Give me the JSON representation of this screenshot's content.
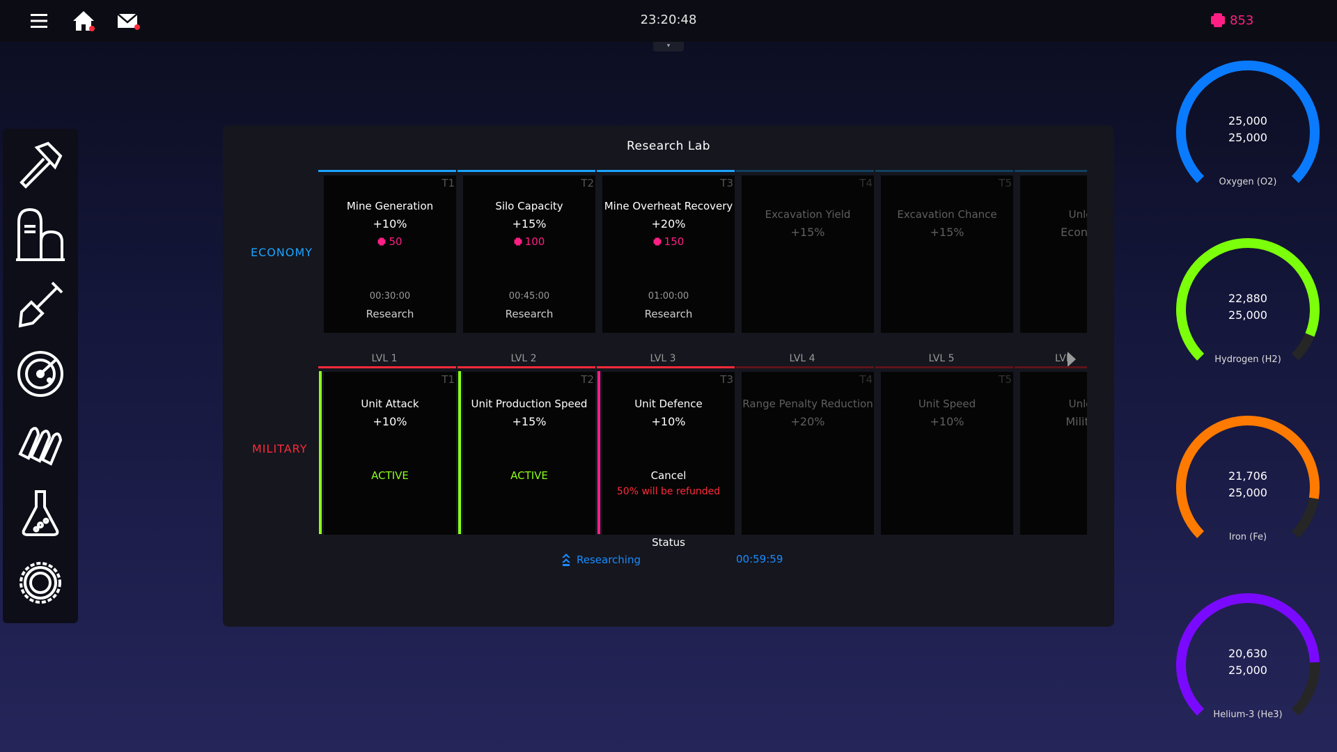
{
  "topbar": {
    "time": "23:20:48",
    "credits": "853",
    "menu_icon": "hamburger-menu-icon",
    "home_icon": "home-icon",
    "mail_icon": "mail-icon",
    "clock_tab": "▾"
  },
  "sidebar": {
    "items": [
      {
        "icon": "hammer-icon"
      },
      {
        "icon": "silo-building-icon"
      },
      {
        "icon": "shovel-icon"
      },
      {
        "icon": "radar-icon"
      },
      {
        "icon": "ammunition-icon"
      },
      {
        "icon": "flask-icon"
      },
      {
        "icon": "gear-icon"
      }
    ]
  },
  "panel": {
    "title": "Research Lab",
    "economy_label": "ECONOMY",
    "military_label": "MILITARY",
    "colors": {
      "economy": "#1ba4ff",
      "military": "#ff2a3a",
      "active": "#8cff1a",
      "researching": "#ff1f84",
      "accent_blue": "#1b8cff"
    },
    "economy": [
      {
        "tier": "T1",
        "name": "Mine Generation",
        "bonus": "+10%",
        "cost": "50",
        "time": "00:30:00",
        "action": "Research"
      },
      {
        "tier": "T2",
        "name": "Silo Capacity",
        "bonus": "+15%",
        "cost": "100",
        "time": "00:45:00",
        "action": "Research"
      },
      {
        "tier": "T3",
        "name": "Mine Overheat Recovery",
        "bonus": "+20%",
        "cost": "150",
        "time": "01:00:00",
        "action": "Research"
      },
      {
        "tier": "T4",
        "name": "Excavation Yield",
        "bonus": "+15%"
      },
      {
        "tier": "T5",
        "name": "Excavation Chance",
        "bonus": "+15%"
      },
      {
        "tier": "",
        "name": "Unlock",
        "bonus": "Economy"
      }
    ],
    "levels": [
      "LVL 1",
      "LVL 2",
      "LVL 3",
      "LVL 4",
      "LVL 5",
      "LVL"
    ],
    "military": [
      {
        "tier": "T1",
        "name": "Unit Attack",
        "bonus": "+10%",
        "action": "ACTIVE"
      },
      {
        "tier": "T2",
        "name": "Unit Production Speed",
        "bonus": "+15%",
        "action": "ACTIVE"
      },
      {
        "tier": "T3",
        "name": "Unit Defence",
        "bonus": "+10%",
        "action": "Cancel",
        "note": "50% will be refunded"
      },
      {
        "tier": "T4",
        "name": "Range Penalty Reduction",
        "bonus": "+20%"
      },
      {
        "tier": "T5",
        "name": "Unit Speed",
        "bonus": "+10%"
      },
      {
        "tier": "",
        "name": "Unlock",
        "bonus": "Military"
      }
    ],
    "status": {
      "title": "Status",
      "state": "Researching",
      "time": "00:59:59"
    }
  },
  "resources": [
    {
      "name": "Oxygen (O2)",
      "current": "25,000",
      "max": "25,000",
      "fraction": 1.0,
      "color": "#0a7bff"
    },
    {
      "name": "Hydrogen (H2)",
      "current": "22,880",
      "max": "25,000",
      "fraction": 0.915,
      "color": "#7cff0a"
    },
    {
      "name": "Iron (Fe)",
      "current": "21,706",
      "max": "25,000",
      "fraction": 0.868,
      "color": "#ff7a00"
    },
    {
      "name": "Helium-3 (He3)",
      "current": "20,630",
      "max": "25,000",
      "fraction": 0.825,
      "color": "#7a0aff"
    }
  ]
}
